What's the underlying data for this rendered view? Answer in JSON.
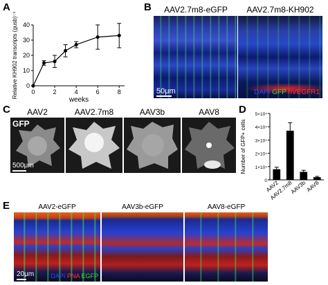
{
  "panels": {
    "A": {
      "letter": "A",
      "chart_data": {
        "type": "line",
        "xlabel": "weeks",
        "ylabel": "Relative KH902 transcripts (gusb)⁻¹",
        "xlim": [
          0,
          8.5
        ],
        "ylim": [
          0,
          40
        ],
        "xticks": [
          0,
          2,
          4,
          6,
          8
        ],
        "yticks": [
          0,
          10,
          20,
          30,
          40
        ],
        "x": [
          0,
          1,
          2,
          3,
          4,
          6,
          8
        ],
        "y": [
          0,
          15,
          16,
          23,
          27,
          32,
          33
        ],
        "err": [
          0,
          1.5,
          4,
          4,
          2,
          8,
          8
        ],
        "color": "#000000"
      }
    },
    "B": {
      "letter": "B",
      "left_title": "AAV2.7m8-eGFP",
      "right_title": "AAV2.7m8-KH902",
      "scale": "50μm",
      "legend": [
        {
          "text": "DAPI",
          "color": "#3344ff"
        },
        {
          "text": "GFP",
          "color": "#33dd33"
        },
        {
          "text": "hVEGFR1",
          "color": "#ff3333"
        }
      ]
    },
    "C": {
      "letter": "C",
      "titles": [
        "AAV2",
        "AAV2.7m8",
        "AAV3b",
        "AAV8"
      ],
      "stain": "GFP",
      "scale": "500μm"
    },
    "D": {
      "letter": "D",
      "chart_data": {
        "type": "bar",
        "ylabel": "Number of GFP+ cells",
        "categories": [
          "AAV2",
          "AAV2.7m8",
          "AAV3b",
          "AAV8"
        ],
        "values": [
          8000,
          37000,
          6000,
          2000
        ],
        "err": [
          1500,
          6000,
          1200,
          600
        ],
        "ylim": [
          0,
          50000
        ],
        "yticks": [
          0,
          10000,
          20000,
          30000,
          40000,
          50000
        ],
        "ytick_labels": [
          "0",
          "1×10⁴",
          "2×10⁴",
          "3×10⁴",
          "4×10⁴",
          "5×10⁴"
        ],
        "color": "#000000"
      }
    },
    "E": {
      "letter": "E",
      "titles": [
        "AAV2-eGFP",
        "AAV3b-eGFP",
        "AAV8-eGFP"
      ],
      "scale": "20μm",
      "legend": [
        {
          "text": "DAPI",
          "color": "#3344ff"
        },
        {
          "text": "PNA",
          "color": "#ff3333"
        },
        {
          "text": "EGFP",
          "color": "#33dd33"
        }
      ]
    }
  }
}
